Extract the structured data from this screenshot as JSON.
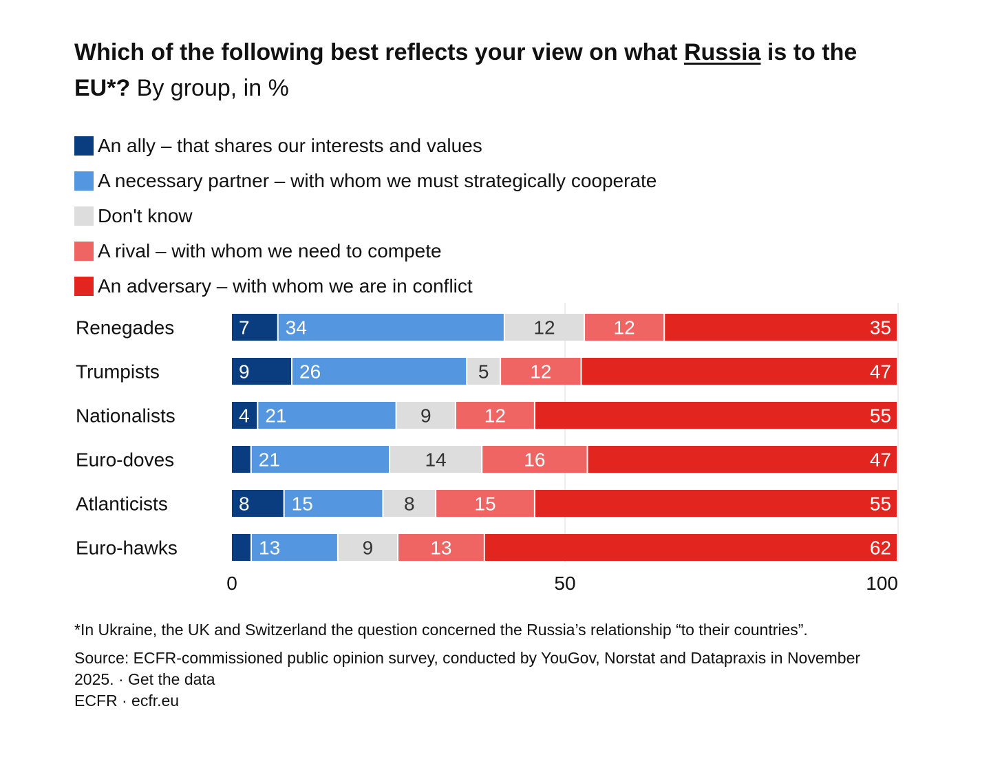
{
  "title": {
    "bold_part1": "Which of the following best reflects your view on what ",
    "bold_underlined": "Russia",
    "bold_part2": " is to the EU*?",
    "regular": " By group, in %"
  },
  "legend": [
    {
      "label": "An ally – that shares our interests and values",
      "color": "#0a3d80"
    },
    {
      "label": "A necessary partner – with whom we must strategically cooperate",
      "color": "#5596e0"
    },
    {
      "label": "Don't know",
      "color": "#dddddd"
    },
    {
      "label": "A rival – with whom we need to compete",
      "color": "#ef6563"
    },
    {
      "label": "An adversary – with whom we are in conflict",
      "color": "#e2251f"
    }
  ],
  "chart_data": {
    "type": "bar",
    "orientation": "horizontal",
    "stacked": true,
    "title": "Which of the following best reflects your view on what Russia is to the EU*? By group, in %",
    "categories": [
      "Renegades",
      "Trumpists",
      "Nationalists",
      "Euro-doves",
      "Atlanticists",
      "Euro-hawks"
    ],
    "series": [
      {
        "name": "An ally – that shares our interests and values",
        "color": "#0a3d80",
        "label_color": "#ffffff",
        "values": [
          7,
          9,
          4,
          3,
          8,
          3
        ],
        "labels": [
          "7",
          "9",
          "4",
          "",
          "8",
          ""
        ]
      },
      {
        "name": "A necessary partner – with whom we must strategically cooperate",
        "color": "#5596e0",
        "label_color": "#ffffff",
        "values": [
          34,
          26,
          21,
          21,
          15,
          13
        ],
        "labels": [
          "34",
          "26",
          "21",
          "21",
          "15",
          "13"
        ]
      },
      {
        "name": "Don't know",
        "color": "#dddddd",
        "label_color": "#333333",
        "values": [
          12,
          5,
          9,
          14,
          8,
          9
        ],
        "labels": [
          "12",
          "5",
          "9",
          "14",
          "8",
          "9"
        ]
      },
      {
        "name": "A rival – with whom we need to compete",
        "color": "#ef6563",
        "label_color": "#ffffff",
        "values": [
          12,
          12,
          12,
          16,
          15,
          13
        ],
        "labels": [
          "12",
          "12",
          "12",
          "16",
          "15",
          "13"
        ]
      },
      {
        "name": "An adversary – with whom we are in conflict",
        "color": "#e2251f",
        "label_color": "#ffffff",
        "values": [
          35,
          47,
          55,
          47,
          55,
          62
        ],
        "labels": [
          "35",
          "47",
          "55",
          "47",
          "55",
          "62"
        ]
      }
    ],
    "xlim": [
      0,
      100
    ],
    "xticks": [
      "0",
      "50",
      "100"
    ],
    "xticks_values": [
      0,
      50,
      100
    ],
    "grid": true
  },
  "footnote": "*In Ukraine, the UK and Switzerland the question concerned the Russia’s relationship “to their countries”.",
  "source": "Source: ECFR-commissioned public opinion survey, conducted by YouGov, Norstat and Datapraxis in November 2025. · Get the data",
  "brand": "ECFR · ecfr.eu"
}
